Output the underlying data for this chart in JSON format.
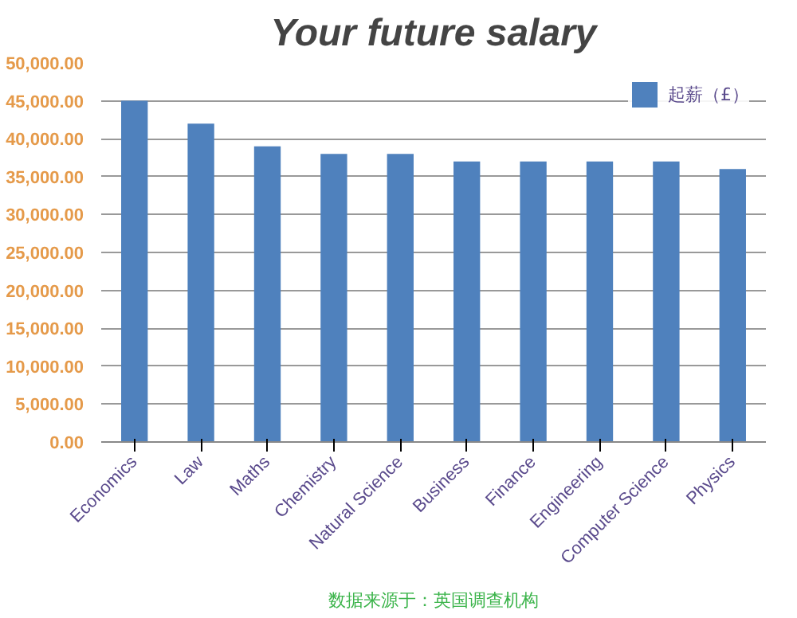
{
  "chart_data": {
    "type": "bar",
    "title": "Your future salary",
    "categories": [
      "Economics",
      "Law",
      "Maths",
      "Chemistry",
      "Natural Science",
      "Business",
      "Finance",
      "Engineering",
      "Computer Science",
      "Physics"
    ],
    "series": [
      {
        "name": "起薪（£）",
        "color": "#4f81bd",
        "values": [
          45000,
          42000,
          39000,
          38000,
          38000,
          37000,
          37000,
          37000,
          37000,
          36000
        ]
      }
    ],
    "ylim": [
      0,
      50000
    ],
    "yticks": [
      {
        "value": 0,
        "label": "0.00"
      },
      {
        "value": 5000,
        "label": "5,000.00"
      },
      {
        "value": 10000,
        "label": "10,000.00"
      },
      {
        "value": 15000,
        "label": "15,000.00"
      },
      {
        "value": 20000,
        "label": "20,000.00"
      },
      {
        "value": 25000,
        "label": "25,000.00"
      },
      {
        "value": 30000,
        "label": "30,000.00"
      },
      {
        "value": 35000,
        "label": "35,000.00"
      },
      {
        "value": 40000,
        "label": "40,000.00"
      },
      {
        "value": 45000,
        "label": "45,000.00"
      },
      {
        "value": 50000,
        "label": "50,000.00"
      }
    ],
    "grid": "y",
    "legend": "top right",
    "annotations": [
      "数据来源于：英国调查机构"
    ]
  }
}
